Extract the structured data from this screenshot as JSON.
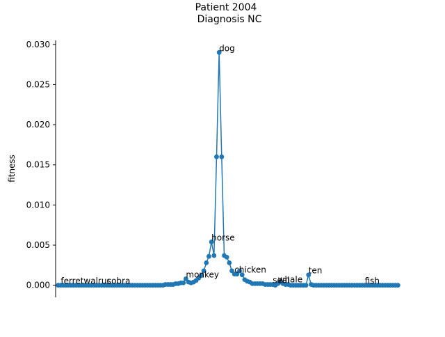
{
  "chart_data": {
    "type": "line",
    "title": "Patient 2004",
    "subtitle": "Diagnosis NC",
    "xlabel": "",
    "ylabel": "fitness",
    "ylim": [
      -0.0015,
      0.0305
    ],
    "xlim": [
      -1,
      134
    ],
    "grid": false,
    "line_color": "#1f77b4",
    "yticks": [
      {
        "value": 0.0,
        "label": "0.000"
      },
      {
        "value": 0.005,
        "label": "0.005"
      },
      {
        "value": 0.01,
        "label": "0.010"
      },
      {
        "value": 0.015,
        "label": "0.015"
      },
      {
        "value": 0.02,
        "label": "0.020"
      },
      {
        "value": 0.025,
        "label": "0.025"
      },
      {
        "value": 0.03,
        "label": "0.030"
      }
    ],
    "series": [
      {
        "values": [
          0.0,
          0.0,
          0.0,
          0.0,
          0.0,
          0.0,
          0.0,
          0.0,
          0.0,
          0.0,
          0.0,
          0.0,
          0.0,
          0.0,
          0.0,
          0.0,
          0.0,
          0.0,
          0.0,
          0.0,
          0.0,
          0.0,
          0.0,
          0.0,
          0.0,
          0.0,
          0.0,
          0.0,
          0.0,
          0.0,
          0.0,
          0.0,
          0.0,
          0.0,
          0.0,
          0.0,
          0.0,
          0.0,
          0.0,
          0.0,
          0.0,
          0.0,
          0.0001,
          0.0001,
          0.0001,
          0.0001,
          0.0002,
          0.0002,
          0.0003,
          0.0003,
          0.0008,
          0.0004,
          0.0003,
          0.0004,
          0.0006,
          0.0009,
          0.0012,
          0.0018,
          0.0028,
          0.0036,
          0.0054,
          0.0037,
          0.016,
          0.029,
          0.016,
          0.0037,
          0.0035,
          0.0028,
          0.0018,
          0.0014,
          0.0014,
          0.0018,
          0.0013,
          0.0007,
          0.0005,
          0.0004,
          0.0002,
          0.0002,
          0.0002,
          0.0002,
          0.0002,
          0.0001,
          0.0001,
          0.0001,
          0.0001,
          0.0,
          0.0002,
          0.0004,
          0.0002,
          0.0001,
          0.0001,
          0.0,
          0.0,
          0.0,
          0.0,
          0.0,
          0.0,
          0.0,
          0.0013,
          0.0001,
          0.0,
          0.0,
          0.0,
          0.0,
          0.0,
          0.0,
          0.0,
          0.0,
          0.0,
          0.0,
          0.0,
          0.0,
          0.0,
          0.0,
          0.0,
          0.0,
          0.0,
          0.0,
          0.0,
          0.0,
          0.0,
          0.0,
          0.0,
          0.0,
          0.0,
          0.0,
          0.0,
          0.0,
          0.0,
          0.0,
          0.0,
          0.0,
          0.0,
          0.0
        ]
      }
    ],
    "annotations": [
      {
        "label": "dog",
        "index": 63,
        "value": 0.029
      },
      {
        "label": "horse",
        "index": 60,
        "value": 0.0054
      },
      {
        "label": "chicken",
        "index": 69,
        "value": 0.0014
      },
      {
        "label": "monkey",
        "index": 50,
        "value": 0.0008
      },
      {
        "label": "ferret",
        "index": 1,
        "value": 0.0
      },
      {
        "label": "walrus",
        "index": 10,
        "value": 0.0
      },
      {
        "label": "cobra",
        "index": 19,
        "value": 0.0
      },
      {
        "label": "seal",
        "index": 84,
        "value": 0.0001
      },
      {
        "label": "whale",
        "index": 86,
        "value": 0.0002
      },
      {
        "label": "ten",
        "index": 98,
        "value": 0.0013
      },
      {
        "label": "fish",
        "index": 120,
        "value": 0.0
      }
    ]
  }
}
